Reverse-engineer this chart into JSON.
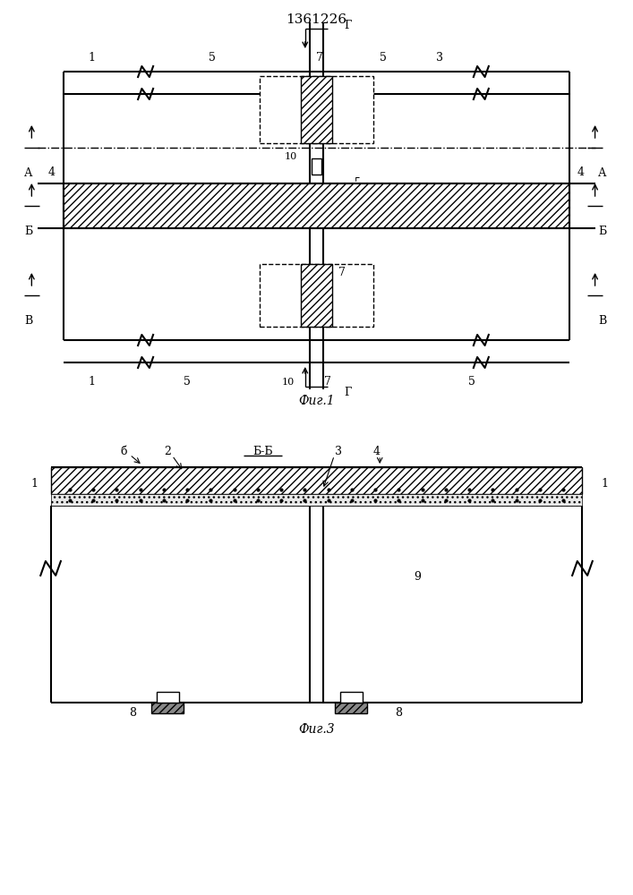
{
  "title": "1361226",
  "fig1_label": "Фиг.1",
  "fig3_label": "Фиг.3",
  "bg_color": "#ffffff",
  "line_color": "#000000"
}
